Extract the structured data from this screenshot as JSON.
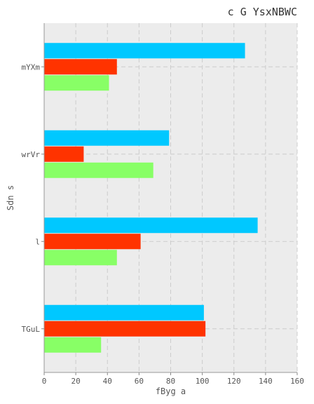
{
  "chart_data": {
    "type": "bar",
    "orientation": "horizontal",
    "title": "c G YsxNBWC",
    "xlabel": "fByg a",
    "ylabel": "Sdn s",
    "categories": [
      "mYXm",
      "wrVr",
      "l",
      "TGuL"
    ],
    "series": [
      {
        "color": "#00c8ff",
        "values": [
          127,
          79,
          135,
          101
        ]
      },
      {
        "color": "#ff3300",
        "values": [
          46,
          25,
          61,
          102
        ]
      },
      {
        "color": "#88ff66",
        "values": [
          41,
          69,
          46,
          36
        ]
      }
    ],
    "xlim": [
      0,
      160
    ],
    "xticks": [
      0,
      20,
      40,
      60,
      80,
      100,
      120,
      140,
      160
    ],
    "grid": true,
    "plot_background": "#ececec",
    "grid_color": "#cccccc"
  }
}
